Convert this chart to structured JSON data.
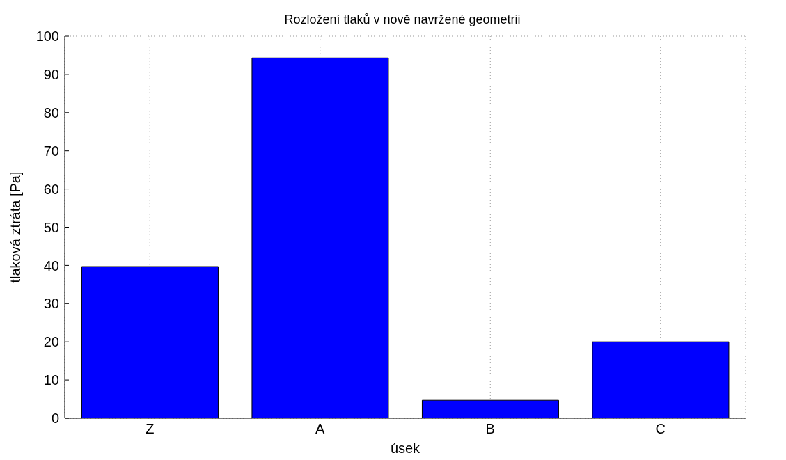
{
  "chart_data": {
    "type": "bar",
    "title": "Rozložení tlaků v nově navržené geometrii",
    "xlabel": "úsek",
    "ylabel": "tlaková ztráta [Pa]",
    "categories": [
      "Z",
      "A",
      "B",
      "C"
    ],
    "values": [
      39.7,
      94.3,
      4.7,
      20
    ],
    "color": "#0000ff",
    "ylim": [
      0,
      100
    ],
    "yticks": [
      0,
      10,
      20,
      30,
      40,
      50,
      60,
      70,
      80,
      90,
      100
    ],
    "grid": true
  }
}
